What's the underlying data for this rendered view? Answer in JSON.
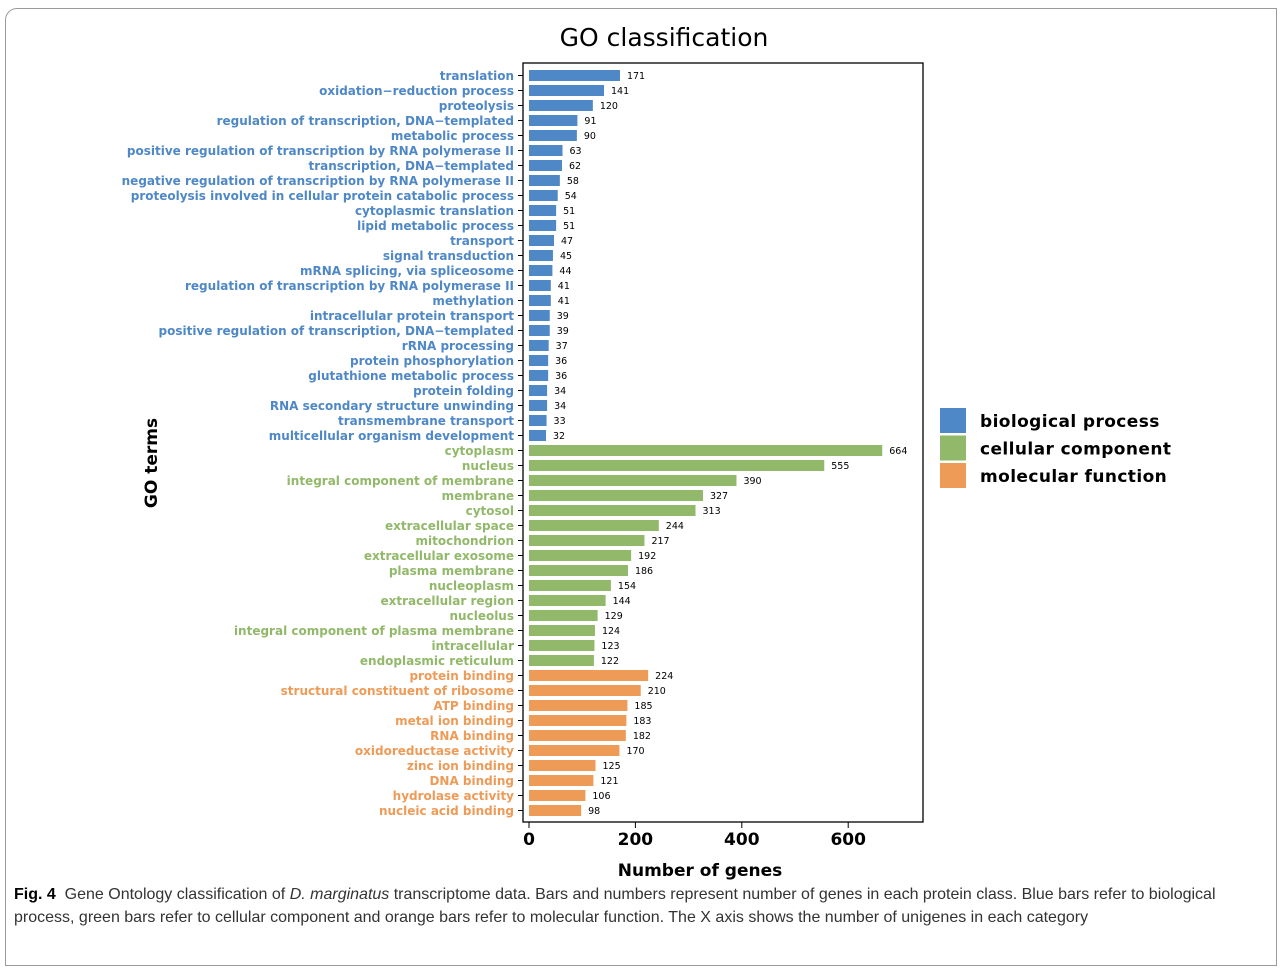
{
  "chart_data": {
    "type": "bar",
    "orientation": "horizontal",
    "title": "GO classification",
    "xlabel": "Number of genes",
    "ylabel": "GO terms",
    "xlim": [
      0,
      745
    ],
    "xticks": [
      0,
      200,
      400,
      600
    ],
    "grid": false,
    "legend_position": "right",
    "legend": [
      {
        "name": "biological process",
        "color": "#4f88c6"
      },
      {
        "name": "cellular component",
        "color": "#92b96a"
      },
      {
        "name": "molecular function",
        "color": "#ee9b58"
      }
    ],
    "categories": [
      "translation",
      "oxidation−reduction process",
      "proteolysis",
      "regulation of transcription, DNA−templated",
      "metabolic process",
      "positive regulation of transcription by RNA polymerase II",
      "transcription, DNA−templated",
      "negative regulation of transcription by RNA polymerase II",
      "proteolysis involved in cellular protein catabolic process",
      "cytoplasmic translation",
      "lipid metabolic process",
      "transport",
      "signal transduction",
      "mRNA splicing, via spliceosome",
      "regulation of transcription by RNA polymerase II",
      "methylation",
      "intracellular protein transport",
      "positive regulation of transcription, DNA−templated",
      "rRNA processing",
      "protein phosphorylation",
      "glutathione metabolic process",
      "protein folding",
      "RNA secondary structure unwinding",
      "transmembrane transport",
      "multicellular organism development",
      "cytoplasm",
      "nucleus",
      "integral component of membrane",
      "membrane",
      "cytosol",
      "extracellular space",
      "mitochondrion",
      "extracellular exosome",
      "plasma membrane",
      "nucleoplasm",
      "extracellular region",
      "nucleolus",
      "integral component of plasma membrane",
      "intracellular",
      "endoplasmic reticulum",
      "protein binding",
      "structural constituent of ribosome",
      "ATP binding",
      "metal ion binding",
      "RNA binding",
      "oxidoreductase activity",
      "zinc ion binding",
      "DNA binding",
      "hydrolase activity",
      "nucleic acid binding"
    ],
    "values": [
      171,
      141,
      120,
      91,
      90,
      63,
      62,
      58,
      54,
      51,
      51,
      47,
      45,
      44,
      41,
      41,
      39,
      39,
      37,
      36,
      36,
      34,
      34,
      33,
      32,
      664,
      555,
      390,
      327,
      313,
      244,
      217,
      192,
      186,
      154,
      144,
      129,
      124,
      123,
      122,
      224,
      210,
      185,
      183,
      182,
      170,
      125,
      121,
      106,
      98
    ],
    "groups": [
      "biological process",
      "biological process",
      "biological process",
      "biological process",
      "biological process",
      "biological process",
      "biological process",
      "biological process",
      "biological process",
      "biological process",
      "biological process",
      "biological process",
      "biological process",
      "biological process",
      "biological process",
      "biological process",
      "biological process",
      "biological process",
      "biological process",
      "biological process",
      "biological process",
      "biological process",
      "biological process",
      "biological process",
      "biological process",
      "cellular component",
      "cellular component",
      "cellular component",
      "cellular component",
      "cellular component",
      "cellular component",
      "cellular component",
      "cellular component",
      "cellular component",
      "cellular component",
      "cellular component",
      "cellular component",
      "cellular component",
      "cellular component",
      "cellular component",
      "molecular function",
      "molecular function",
      "molecular function",
      "molecular function",
      "molecular function",
      "molecular function",
      "molecular function",
      "molecular function",
      "molecular function",
      "molecular function"
    ]
  },
  "caption": {
    "label": "Fig. 4",
    "text_1": "Gene Ontology classification of ",
    "species": "D. marginatus",
    "text_2": " transcriptome data. Bars and numbers represent number of genes in each protein class. Blue bars refer to biological process, green bars refer to cellular component and orange bars refer to molecular function. The X axis shows the number of unigenes in each category"
  }
}
